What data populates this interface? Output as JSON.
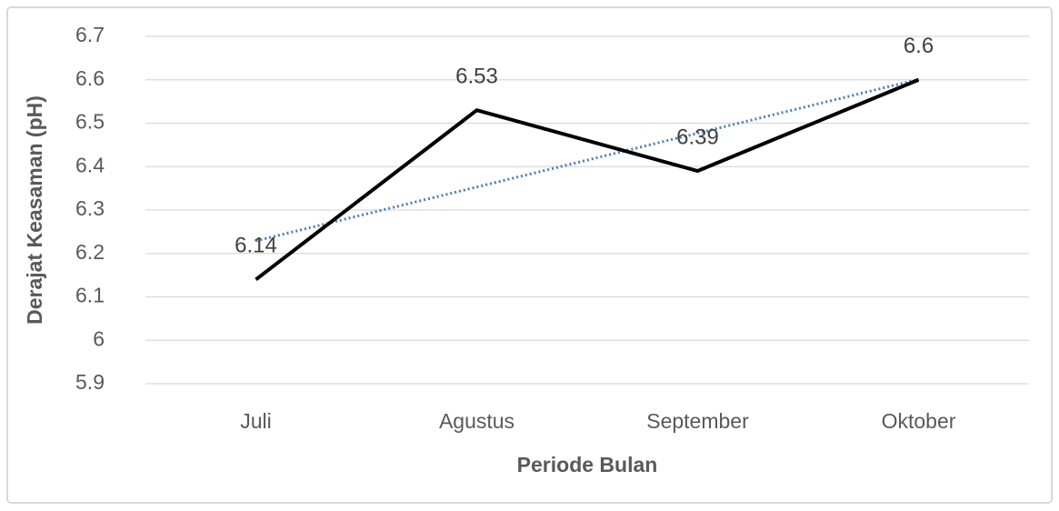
{
  "chart_data": {
    "type": "line",
    "categories": [
      "Juli",
      "Agustus",
      "September",
      "Oktober"
    ],
    "values": [
      6.14,
      6.53,
      6.39,
      6.6
    ],
    "color": "#000000",
    "xlabel": "Periode Bulan",
    "ylabel": "Derajat Keasaman (pH)",
    "ylim": [
      5.9,
      6.7
    ],
    "yticks": [
      5.9,
      6,
      6.1,
      6.2,
      6.3,
      6.4,
      6.5,
      6.6,
      6.7
    ],
    "grid": true,
    "data_labels": true,
    "trendline": {
      "type": "linear",
      "color": "#4a7ebb",
      "style": "dotted"
    }
  }
}
